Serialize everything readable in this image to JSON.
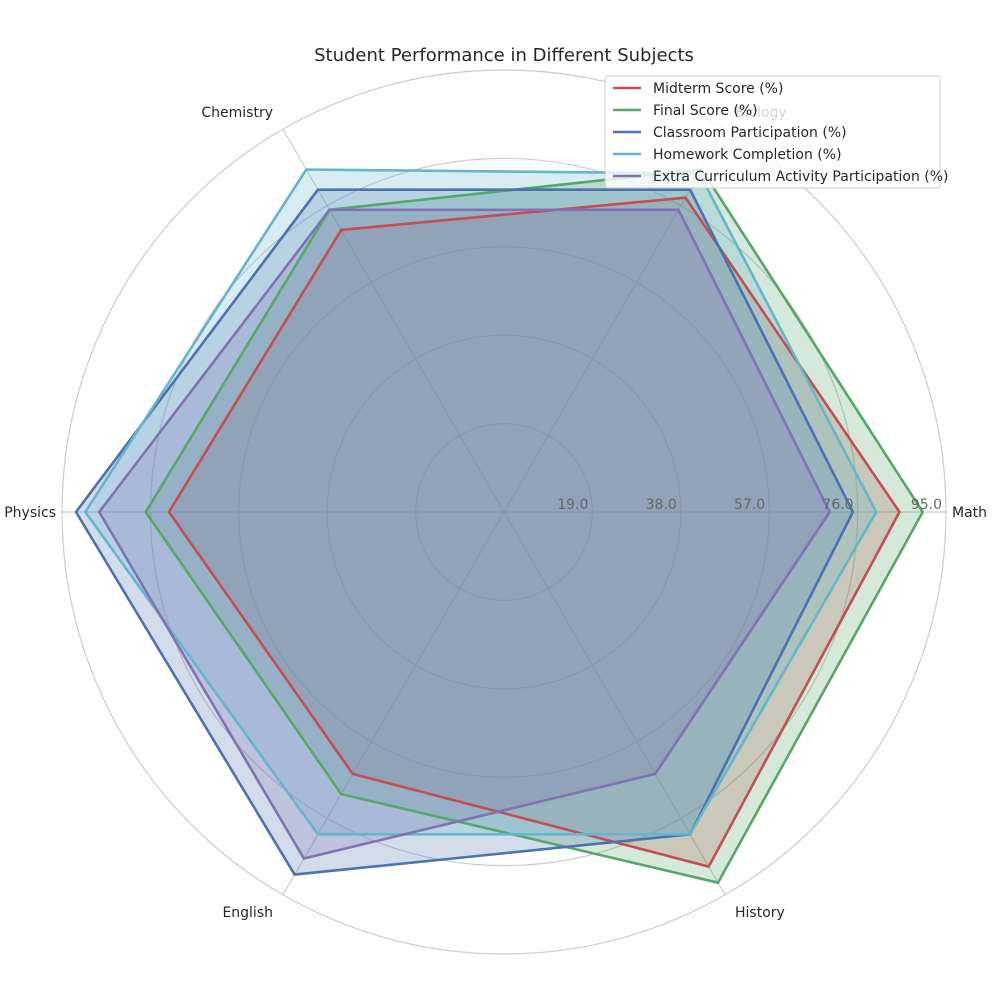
{
  "chart_data": {
    "type": "radar",
    "title": "Student Performance in Different Subjects",
    "categories": [
      "Math",
      "Biology",
      "Chemistry",
      "Physics",
      "English",
      "History"
    ],
    "rmax": 95.0,
    "ticks": [
      "19.0",
      "38.0",
      "57.0",
      "76.0",
      "95.0"
    ],
    "tick_values": [
      19,
      38,
      57,
      76,
      95
    ],
    "grid": true,
    "legend_position": "top-right",
    "series": [
      {
        "name": "Midterm Score (%)",
        "color": "#c44e52",
        "values": [
          85,
          78,
          70,
          72,
          65,
          88
        ]
      },
      {
        "name": "Final Score (%)",
        "color": "#55a868",
        "values": [
          90,
          85,
          75,
          77,
          70,
          92
        ]
      },
      {
        "name": "Classroom Participation (%)",
        "color": "#4c72b0",
        "values": [
          75,
          80,
          80,
          92,
          90,
          80
        ]
      },
      {
        "name": "Homework Completion (%)",
        "color": "#64b5cd",
        "values": [
          80,
          84,
          85,
          90,
          80,
          80
        ]
      },
      {
        "name": "Extra Curriculum Activity Participation (%)",
        "color": "#8172b3",
        "values": [
          70,
          75,
          75,
          87,
          86,
          65
        ]
      }
    ]
  }
}
